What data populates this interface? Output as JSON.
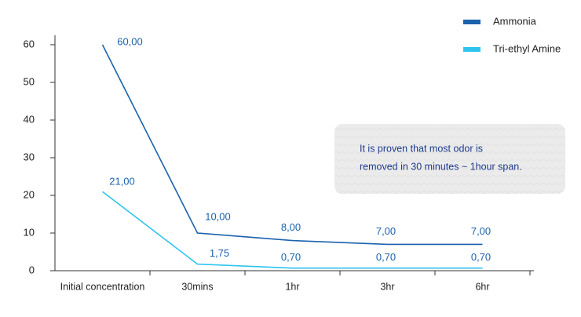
{
  "chart_data": {
    "type": "line",
    "categories": [
      "Initial concentration",
      "30mins",
      "1hr",
      "3hr",
      "6hr"
    ],
    "series": [
      {
        "name": "Ammonia",
        "color": "#1b62ac",
        "values": [
          60,
          10,
          8,
          7,
          7
        ],
        "value_labels": [
          "60,00",
          "10,00",
          "8,00",
          "7,00",
          "7,00"
        ]
      },
      {
        "name": "Tri-ethyl Amine",
        "color": "#2ec4ef",
        "values": [
          21,
          1.75,
          0.7,
          0.7,
          0.7
        ],
        "value_labels": [
          "21,00",
          "1,75",
          "0,70",
          "0,70",
          "0,70"
        ]
      }
    ],
    "ylim": [
      0,
      60
    ],
    "yticks": [
      0,
      10,
      20,
      30,
      40,
      50,
      60
    ],
    "grid": false,
    "legend": "top-right",
    "annotation": [
      "It is proven that most odor is",
      "removed in 30 minutes ~ 1hour span."
    ]
  }
}
